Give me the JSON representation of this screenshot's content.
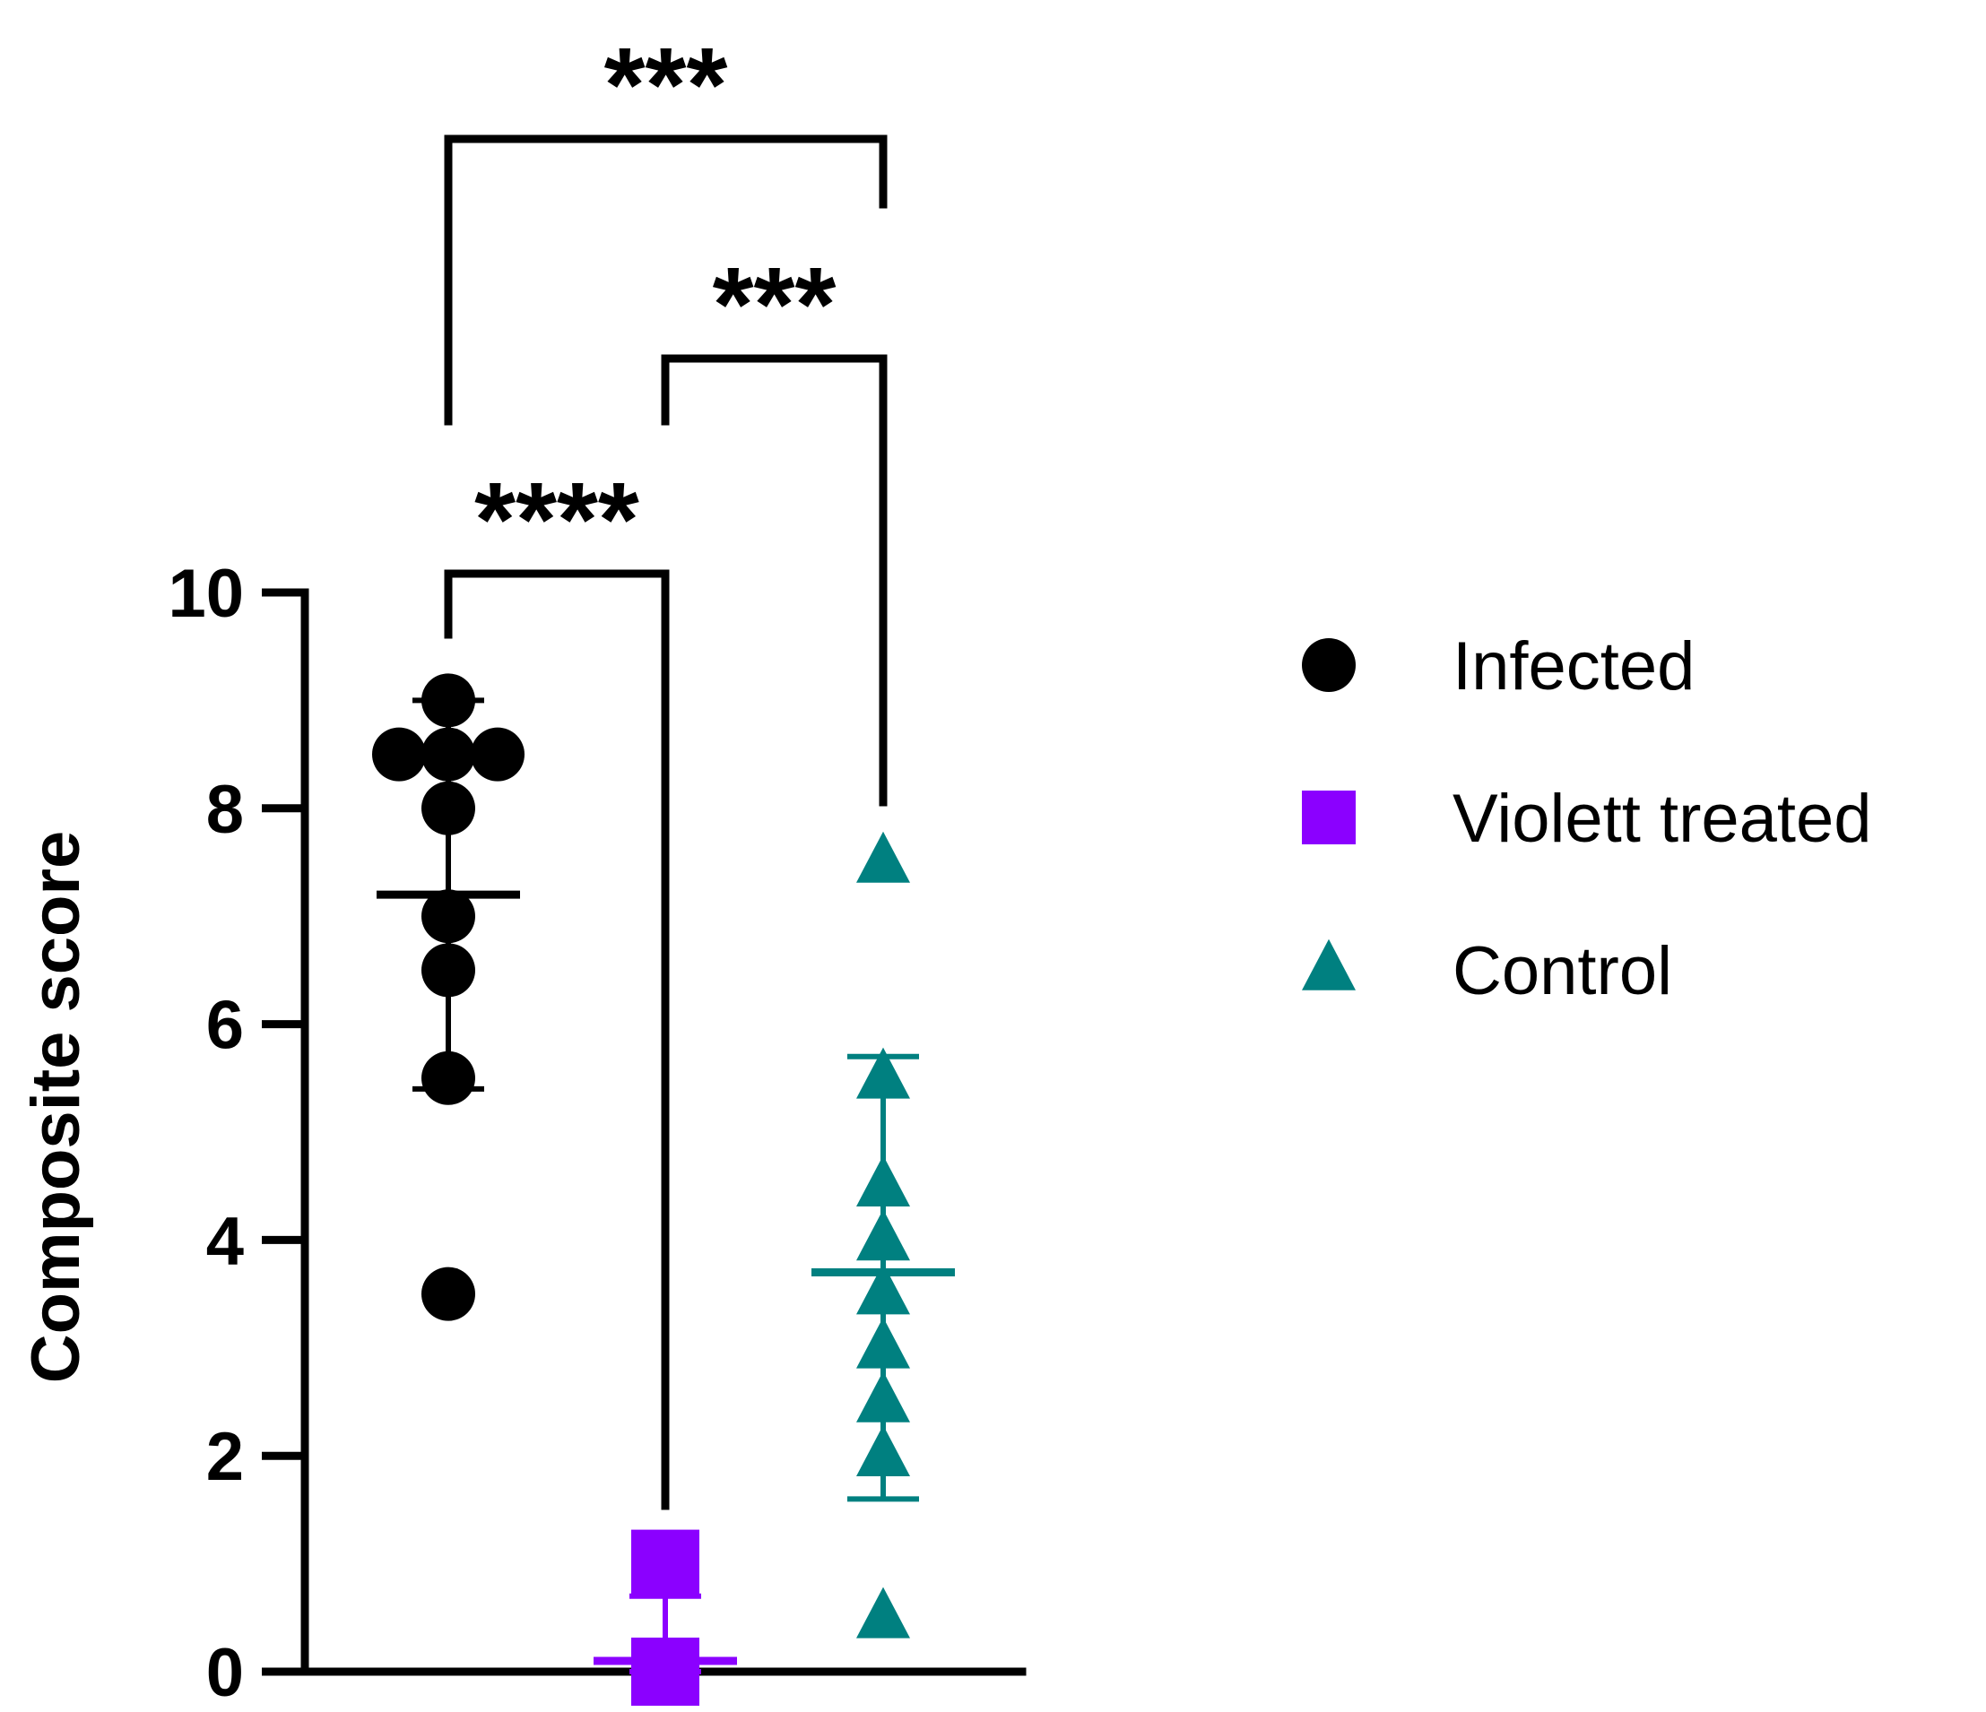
{
  "chart_data": {
    "type": "scatter",
    "ylabel": "Composite score",
    "xlabel": "",
    "ylim": [
      0,
      10
    ],
    "yticks": [
      0,
      2,
      4,
      6,
      8,
      10
    ],
    "grid": false,
    "legend_position": "right",
    "series": [
      {
        "name": "Infected",
        "color": "#000000",
        "marker": "circle",
        "values": [
          9.0,
          8.5,
          8.5,
          8.5,
          8.0,
          7.0,
          6.5,
          5.5,
          3.5
        ],
        "mean": 7.2,
        "error_low": 5.4,
        "error_high": 9.0
      },
      {
        "name": "Violett treated",
        "color": "#8B00FF",
        "marker": "square",
        "values": [
          1.0,
          0.0,
          0.0,
          0.0,
          0.0,
          0.0,
          0.0,
          0.0
        ],
        "mean": 0.1,
        "error_low": 0.0,
        "error_high": 0.7
      },
      {
        "name": "Control",
        "color": "#008080",
        "marker": "triangle",
        "values": [
          7.5,
          5.5,
          4.5,
          4.0,
          3.5,
          3.0,
          2.5,
          2.0,
          0.5
        ],
        "mean": 3.7,
        "error_low": 1.6,
        "error_high": 5.7
      }
    ],
    "significance": [
      {
        "from": 0,
        "to": 1,
        "label": "****"
      },
      {
        "from": 1,
        "to": 2,
        "label": "***"
      },
      {
        "from": 0,
        "to": 2,
        "label": "***"
      }
    ]
  }
}
